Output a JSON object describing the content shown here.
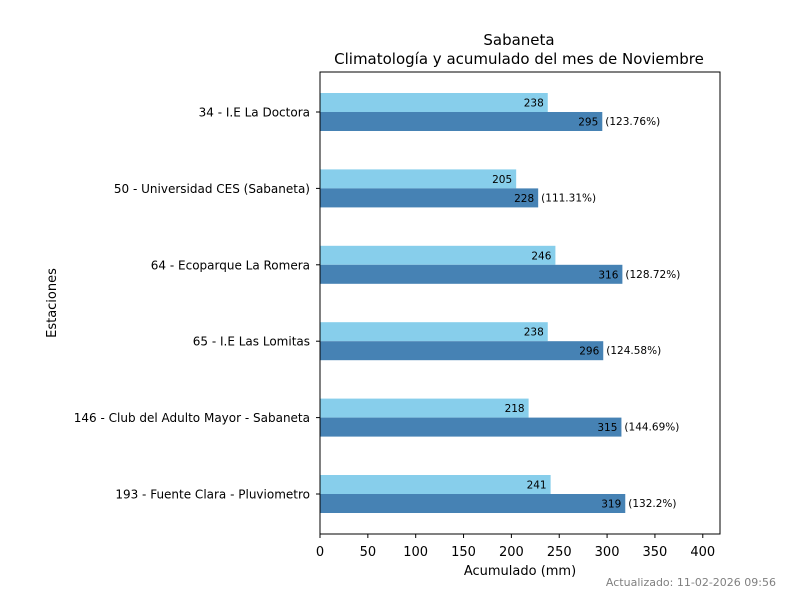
{
  "chart_data": {
    "type": "bar",
    "orientation": "horizontal",
    "title": "Sabaneta",
    "subtitle": "Climatología y acumulado del mes de Noviembre",
    "xlabel": "Acumulado (mm)",
    "ylabel": "Estaciones",
    "xlim": [
      0,
      418
    ],
    "xticks": [
      0,
      50,
      100,
      150,
      200,
      250,
      300,
      350,
      400
    ],
    "categories": [
      "34 - I.E La Doctora",
      "50 - Universidad CES (Sabaneta)",
      "64 - Ecoparque La Romera",
      "65 - I.E Las Lomitas",
      "146 - Club del Adulto Mayor - Sabaneta",
      "193 - Fuente Clara - Pluviometro"
    ],
    "series": [
      {
        "name": "Climatología",
        "color": "#87ceeb",
        "values": [
          238,
          205,
          246,
          238,
          218,
          241
        ]
      },
      {
        "name": "Acumulado",
        "color": "#4682b4",
        "values": [
          295,
          228,
          316,
          296,
          315,
          319
        ]
      }
    ],
    "percent_labels": [
      "(123.76%)",
      "(111.31%)",
      "(128.72%)",
      "(124.58%)",
      "(144.69%)",
      "(132.2%)"
    ],
    "grid": false
  },
  "footer": {
    "updated": "Actualizado: 11-02-2026 09:56"
  }
}
